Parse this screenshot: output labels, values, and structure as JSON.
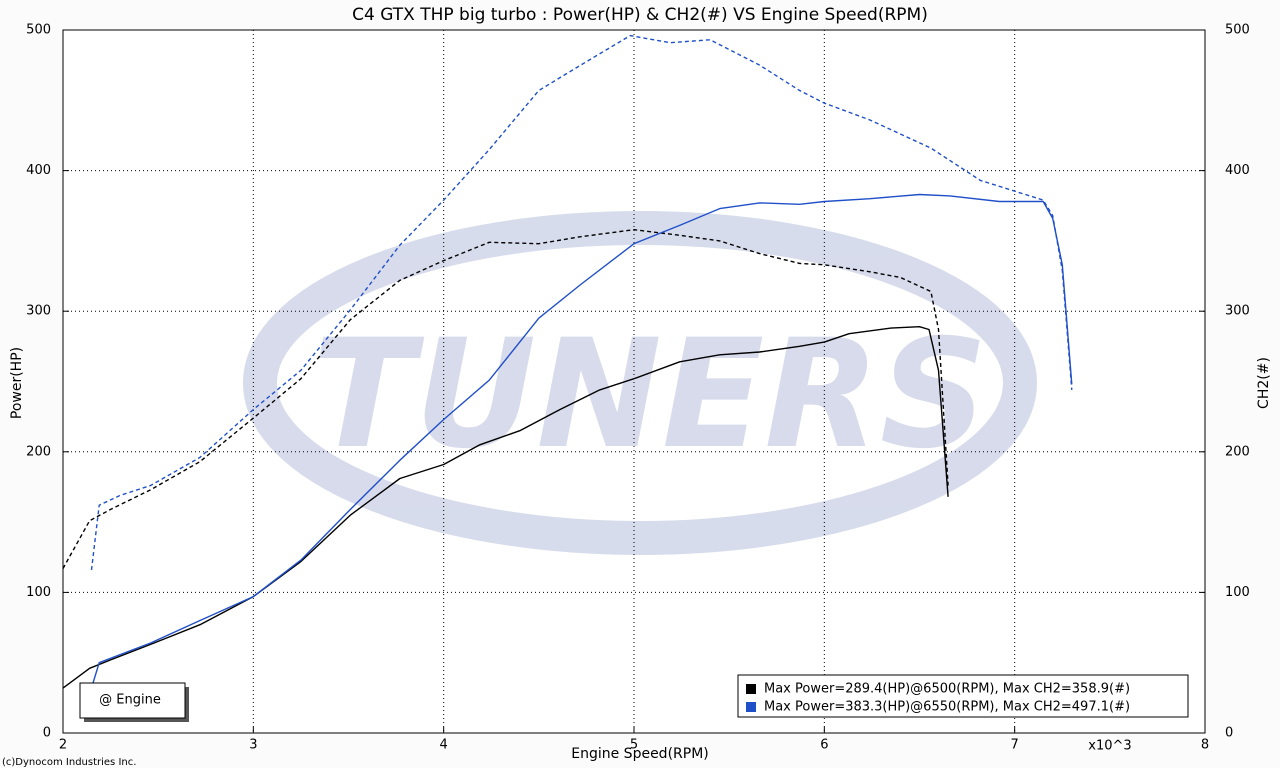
{
  "chart_data": {
    "type": "line",
    "title": "C4 GTX THP big turbo : Power(HP) & CH2(#) VS Engine Speed(RPM)",
    "xlabel": "Engine Speed(RPM)",
    "x_multiplier": "x10^3",
    "ylabel": "Power(HP)",
    "y2label": "CH2(#)",
    "annotation": "@ Engine",
    "copyright": "(c)Dynocom Industries Inc.",
    "watermark": "TUNERS",
    "xlim": [
      2,
      8
    ],
    "xticks": [
      2,
      3,
      4,
      5,
      6,
      7,
      8
    ],
    "ylim": [
      0,
      500
    ],
    "yticks": [
      0,
      100,
      200,
      300,
      400,
      500
    ],
    "y2lim": [
      0,
      500
    ],
    "y2ticks": [
      0,
      100,
      200,
      300,
      400,
      500
    ],
    "grid": true,
    "legend_position": "lower right",
    "series": [
      {
        "name": "Max Power=289.4(HP)@6500(RPM), Max CH2=358.9(#)",
        "color": "#000000",
        "axis": "y",
        "dashed": false,
        "x": [
          2.0,
          2.14,
          2.25,
          2.46,
          2.72,
          3.0,
          3.25,
          3.51,
          3.77,
          4.0,
          4.19,
          4.4,
          4.61,
          4.82,
          5.0,
          5.24,
          5.45,
          5.66,
          5.87,
          6.0,
          6.13,
          6.35,
          6.5,
          6.55,
          6.6,
          6.65
        ],
        "values": [
          32,
          46,
          52,
          63,
          77,
          97,
          122,
          155,
          181,
          191,
          205,
          215,
          230,
          244,
          252,
          264,
          269,
          271,
          275,
          278,
          284,
          288,
          289,
          287,
          258,
          168
        ]
      },
      {
        "color": "#000000",
        "axis": "y2",
        "dashed": true,
        "x": [
          2.0,
          2.14,
          2.25,
          2.46,
          2.72,
          3.0,
          3.25,
          3.51,
          3.77,
          4.0,
          4.24,
          4.5,
          4.72,
          5.0,
          5.24,
          5.45,
          5.66,
          5.87,
          6.0,
          6.24,
          6.4,
          6.56,
          6.6,
          6.65
        ],
        "values": [
          117,
          151,
          159,
          173,
          193,
          224,
          252,
          294,
          322,
          336,
          349,
          348,
          353,
          358,
          354,
          350,
          341,
          334,
          333,
          328,
          324,
          314,
          287,
          176
        ]
      },
      {
        "name": "Max Power=383.3(HP)@6550(RPM), Max CH2=497.1(#)",
        "color": "#2050c8",
        "axis": "y",
        "dashed": false,
        "x": [
          2.15,
          2.19,
          2.46,
          2.72,
          3.0,
          3.25,
          3.51,
          3.77,
          4.0,
          4.24,
          4.5,
          4.72,
          5.0,
          5.24,
          5.45,
          5.66,
          5.87,
          6.0,
          6.24,
          6.5,
          6.66,
          6.92,
          7.15,
          7.2,
          7.25,
          7.3
        ],
        "values": [
          32,
          50,
          64,
          80,
          97,
          123,
          159,
          194,
          223,
          251,
          295,
          319,
          348,
          361,
          373,
          377,
          376,
          378,
          380,
          383,
          382,
          378,
          378,
          366,
          333,
          248
        ]
      },
      {
        "color": "#2050c8",
        "axis": "y2",
        "dashed": true,
        "x": [
          2.15,
          2.19,
          2.3,
          2.46,
          2.72,
          3.0,
          3.25,
          3.51,
          3.77,
          4.0,
          4.24,
          4.5,
          4.72,
          4.98,
          5.19,
          5.4,
          5.66,
          5.87,
          6.0,
          6.24,
          6.56,
          6.82,
          7.15,
          7.2,
          7.25,
          7.3
        ],
        "values": [
          116,
          162,
          169,
          176,
          196,
          230,
          258,
          301,
          347,
          379,
          415,
          457,
          475,
          496,
          491,
          493,
          475,
          457,
          448,
          436,
          416,
          393,
          379,
          368,
          329,
          244
        ]
      }
    ]
  }
}
